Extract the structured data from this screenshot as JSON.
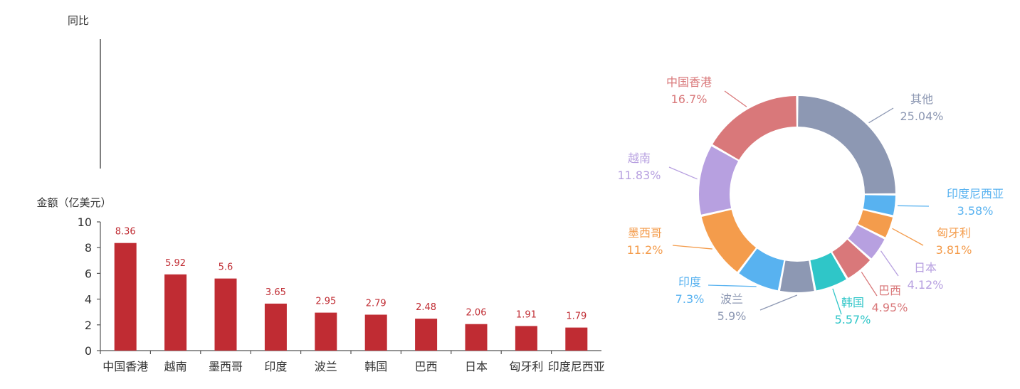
{
  "chart_data": [
    {
      "type": "line",
      "ylabel": "同比",
      "categories": [],
      "series": []
    },
    {
      "type": "bar",
      "ylabel": "金额（亿美元）",
      "categories": [
        "中国香港",
        "越南",
        "墨西哥",
        "印度",
        "波兰",
        "韩国",
        "巴西",
        "日本",
        "匈牙利",
        "印度尼西亚"
      ],
      "values": [
        8.36,
        5.92,
        5.6,
        3.65,
        2.95,
        2.79,
        2.48,
        2.06,
        1.91,
        1.79
      ],
      "value_labels": [
        "8.36",
        "5.92",
        "5.6",
        "3.65",
        "2.95",
        "2.79",
        "2.48",
        "2.06",
        "1.91",
        "1.79"
      ],
      "ylim": [
        0,
        10
      ],
      "yticks": [
        "0",
        "2",
        "4",
        "6",
        "8",
        "10"
      ],
      "bar_color": "#c02c33"
    },
    {
      "type": "pie",
      "donut": true,
      "slices": [
        {
          "label": "其他",
          "value": 25.04,
          "pct": "25.04%",
          "color": "#8d98b3"
        },
        {
          "label": "印度尼西亚",
          "value": 3.58,
          "pct": "3.58%",
          "color": "#58b2f0"
        },
        {
          "label": "匈牙利",
          "value": 3.81,
          "pct": "3.81%",
          "color": "#f49c4c"
        },
        {
          "label": "日本",
          "value": 4.12,
          "pct": "4.12%",
          "color": "#b7a0e0"
        },
        {
          "label": "巴西",
          "value": 4.95,
          "pct": "4.95%",
          "color": "#d9787a"
        },
        {
          "label": "韩国",
          "value": 5.57,
          "pct": "5.57%",
          "color": "#2fc6c8"
        },
        {
          "label": "波兰",
          "value": 5.9,
          "pct": "5.9%",
          "color": "#8d98b3"
        },
        {
          "label": "印度",
          "value": 7.3,
          "pct": "7.3%",
          "color": "#58b2f0"
        },
        {
          "label": "墨西哥",
          "value": 11.2,
          "pct": "11.2%",
          "color": "#f49c4c"
        },
        {
          "label": "越南",
          "value": 11.83,
          "pct": "11.83%",
          "color": "#b7a0e0"
        },
        {
          "label": "中国香港",
          "value": 16.7,
          "pct": "16.7%",
          "color": "#d9787a"
        }
      ]
    }
  ]
}
